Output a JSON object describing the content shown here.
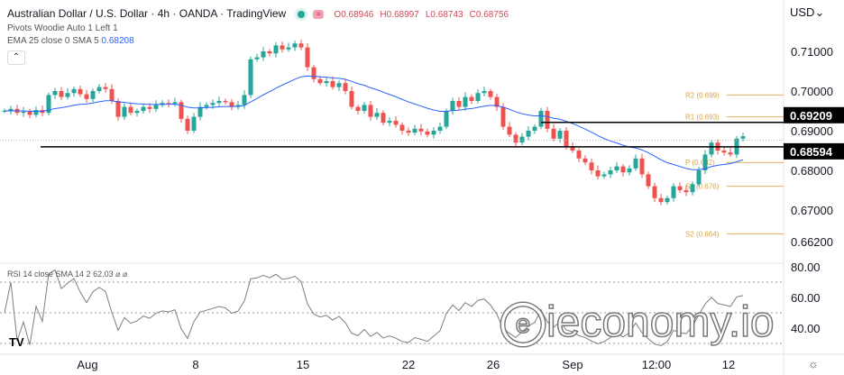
{
  "header": {
    "title": "Australian Dollar / U.S. Dollar · 4h · OANDA · TradingView",
    "open": "O0.68946",
    "high": "H0.68997",
    "low": "L0.68743",
    "close": "C0.68756",
    "currency": "USD"
  },
  "indicators": {
    "pivots": "Pivots Woodie Auto 1 Left 1",
    "ema_label": "EMA 25 close 0 SMA 5",
    "ema_value": "0.68208",
    "rsi_label": "RSI 14 close SMA 14 2",
    "rsi_value": "62.03"
  },
  "watermark": "ieconomy.io",
  "colors": {
    "up": "#26a69a",
    "down": "#ef5350",
    "ema": "#2962ff",
    "pivot": "#e0b060",
    "hline": "#000000",
    "rsi": "#7e7e7e"
  },
  "chart_data": {
    "type": "candlestick",
    "ylim": [
      0.66,
      0.717
    ],
    "yticks": [
      "0.71000",
      "0.70000",
      "0.69000",
      "0.68000",
      "0.67000",
      "0.66200"
    ],
    "xticks": [
      "Aug",
      "8",
      "15",
      "22",
      "26",
      "Sep",
      "12:00",
      "12"
    ],
    "closes": [
      0.695,
      0.6955,
      0.6945,
      0.6948,
      0.694,
      0.6952,
      0.6945,
      0.699,
      0.7,
      0.6985,
      0.6995,
      0.7005,
      0.6992,
      0.698,
      0.7,
      0.701,
      0.7005,
      0.6975,
      0.6935,
      0.696,
      0.6945,
      0.695,
      0.696,
      0.6955,
      0.6965,
      0.697,
      0.6968,
      0.6972,
      0.693,
      0.69,
      0.6935,
      0.696,
      0.6965,
      0.697,
      0.6975,
      0.6972,
      0.696,
      0.6965,
      0.699,
      0.708,
      0.7085,
      0.71,
      0.7095,
      0.7115,
      0.7105,
      0.711,
      0.712,
      0.711,
      0.706,
      0.703,
      0.702,
      0.7025,
      0.701,
      0.702,
      0.7,
      0.696,
      0.695,
      0.6965,
      0.6935,
      0.6945,
      0.692,
      0.6925,
      0.6915,
      0.69,
      0.6895,
      0.6905,
      0.6898,
      0.689,
      0.69,
      0.691,
      0.695,
      0.6975,
      0.696,
      0.6985,
      0.6975,
      0.6995,
      0.7,
      0.6985,
      0.696,
      0.691,
      0.689,
      0.687,
      0.6885,
      0.69,
      0.691,
      0.695,
      0.6905,
      0.688,
      0.69,
      0.686,
      0.685,
      0.683,
      0.682,
      0.68,
      0.6785,
      0.679,
      0.68,
      0.681,
      0.6795,
      0.6805,
      0.683,
      0.679,
      0.676,
      0.673,
      0.672,
      0.673,
      0.676,
      0.675,
      0.6745,
      0.6765,
      0.68,
      0.684,
      0.687,
      0.685,
      0.6845,
      0.684,
      0.688,
      0.6886
    ],
    "pivots": [
      {
        "label": "R2 (0.699)",
        "value": 0.699
      },
      {
        "label": "R1 (0.693)",
        "value": 0.6935
      },
      {
        "label": "P (0.682)",
        "value": 0.682
      },
      {
        "label": "S1 (0.676)",
        "value": 0.676
      },
      {
        "label": "S2 (0.664)",
        "value": 0.664
      }
    ],
    "hlines": [
      {
        "label": "0.69209",
        "value": 0.69209
      },
      {
        "label": "0.68594",
        "value": 0.68594
      }
    ],
    "rsi": {
      "ylim": [
        20,
        80
      ],
      "yticks": [
        "80.00",
        "60.00",
        "40.00"
      ],
      "bands": [
        70,
        50,
        30
      ]
    }
  }
}
